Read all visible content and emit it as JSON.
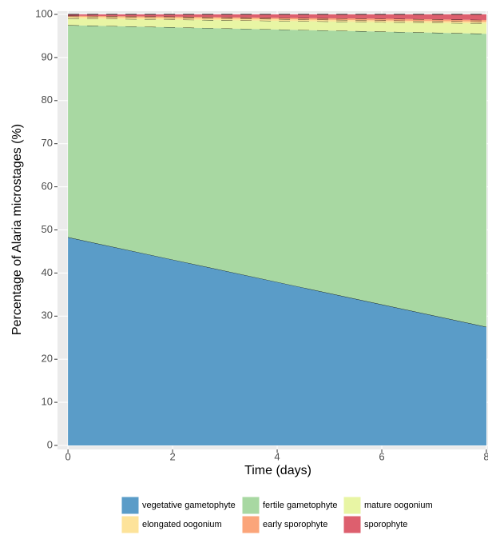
{
  "chart_data": {
    "type": "area",
    "x_label": "Time (days)",
    "y_label": "Percentage of Alaria microstages (%)",
    "x": [
      0,
      2,
      4,
      6,
      8
    ],
    "stacked": true,
    "xlim": [
      -0.2,
      8
    ],
    "ylim": [
      0,
      100
    ],
    "xticks": [
      0,
      2,
      4,
      6,
      8
    ],
    "yticks": [
      0,
      10,
      20,
      30,
      40,
      50,
      60,
      70,
      80,
      90,
      100
    ],
    "grid": true,
    "legend_position": "bottom",
    "series": [
      {
        "name": "vegetative gametophyte",
        "color": "#5a9cc8",
        "values": [
          48.3,
          43.1,
          37.9,
          32.7,
          27.5
        ]
      },
      {
        "name": "fertile gametophyte",
        "color": "#a8d8a2",
        "values": [
          49.2,
          53.9,
          58.6,
          63.3,
          68.0
        ]
      },
      {
        "name": "mature oogonium",
        "color": "#e8f5a4",
        "values": [
          1.6,
          1.8,
          2.0,
          2.2,
          2.4
        ]
      },
      {
        "name": "elongated oogonium",
        "color": "#fde39a",
        "values": [
          0.4,
          0.4,
          0.4,
          0.4,
          0.4
        ]
      },
      {
        "name": "early sporophyte",
        "color": "#fba57a",
        "values": [
          0.2,
          0.3,
          0.3,
          0.4,
          0.4
        ]
      },
      {
        "name": "sporophyte",
        "color": "#dd5f6e",
        "values": [
          0.3,
          0.5,
          0.8,
          1.0,
          1.3
        ]
      }
    ]
  }
}
